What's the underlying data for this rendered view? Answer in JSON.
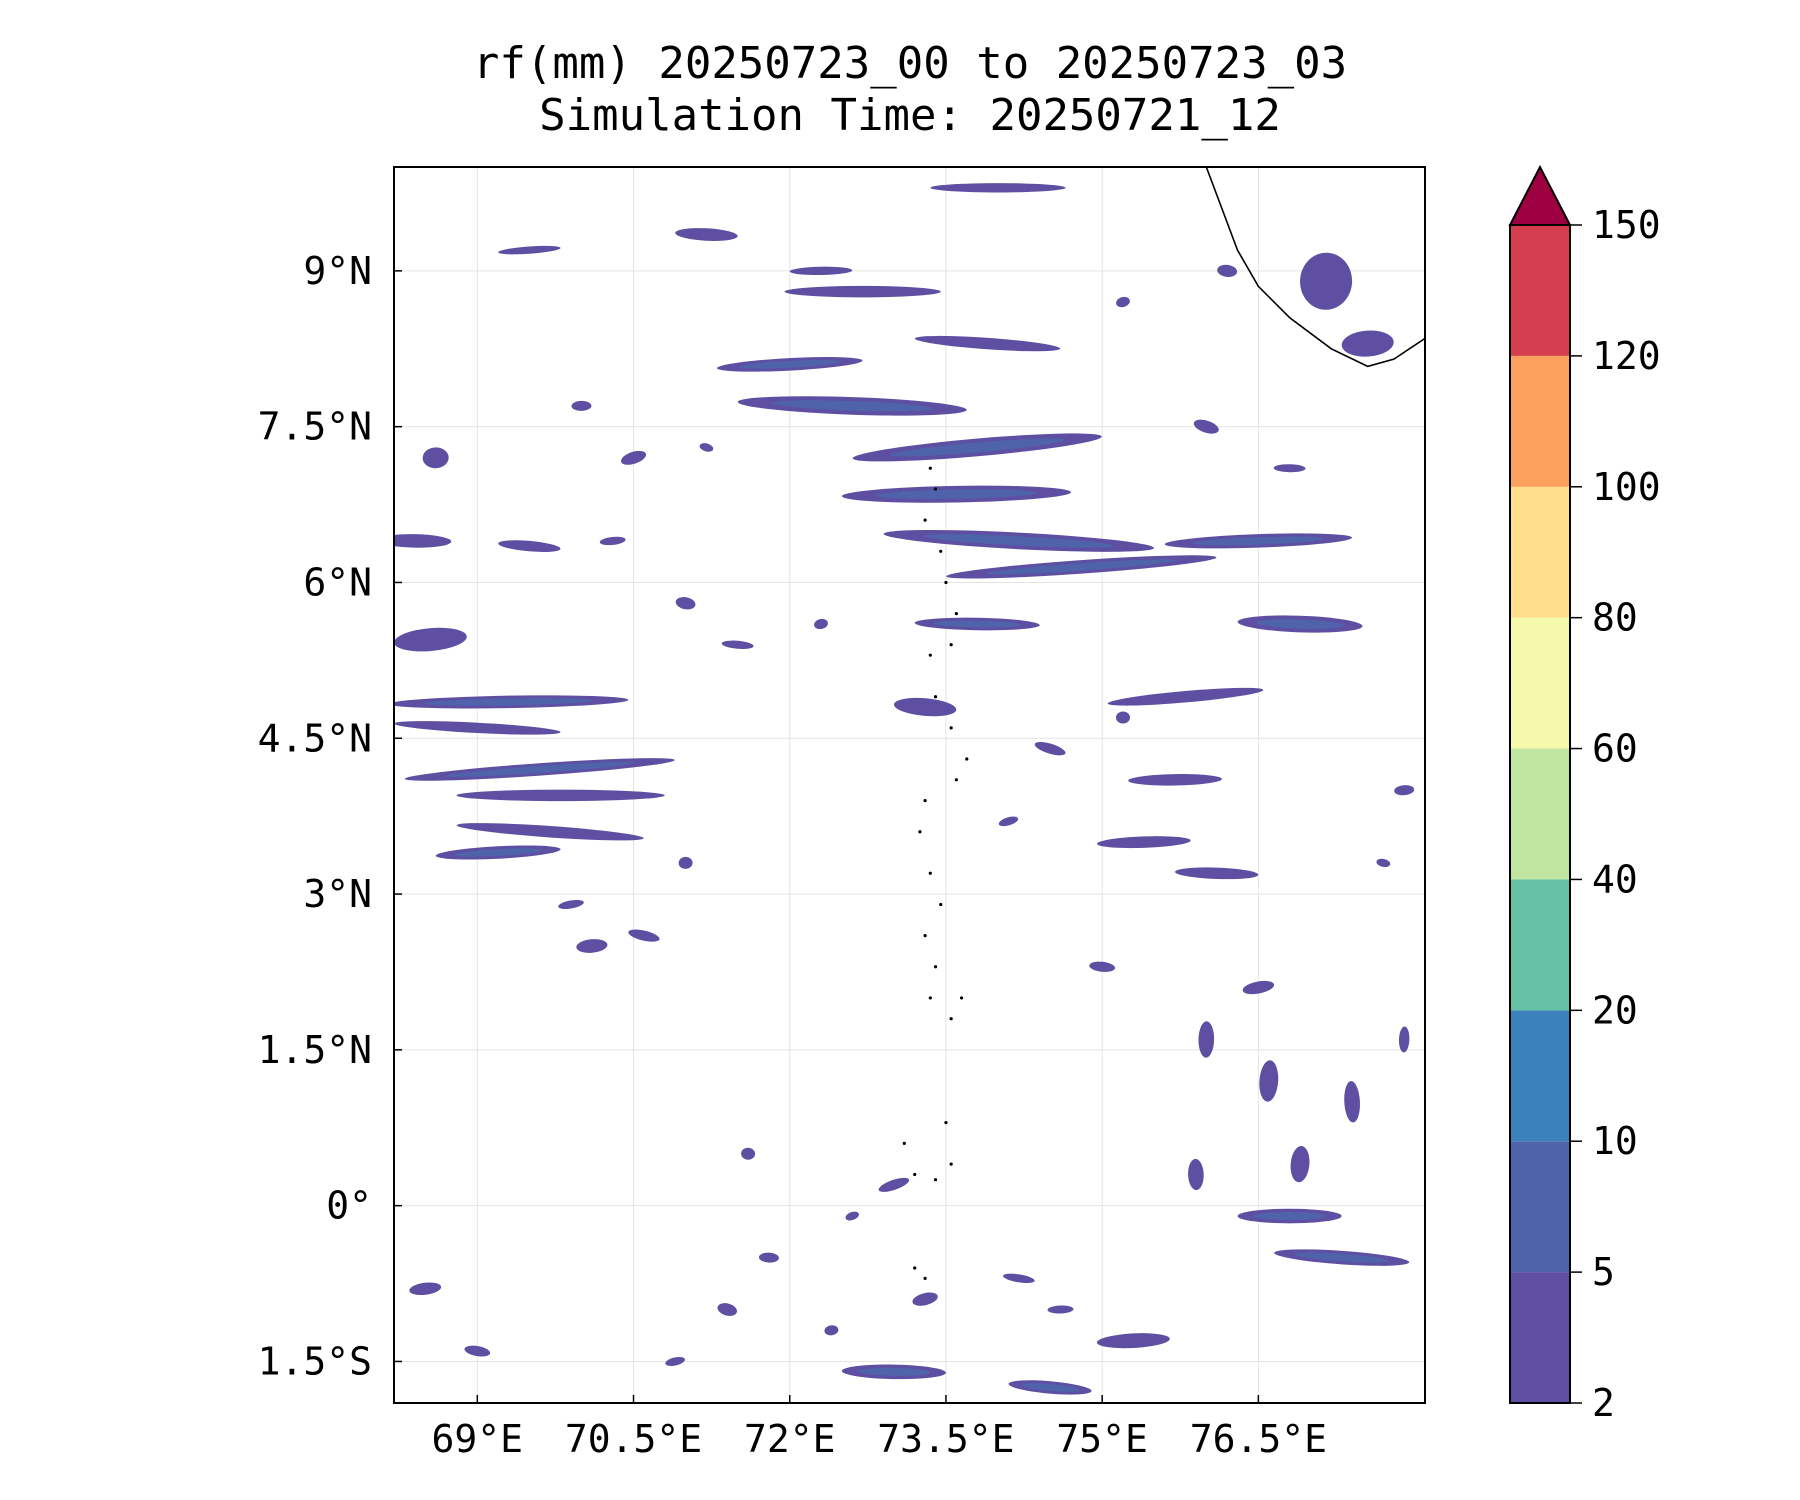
{
  "title": {
    "line1": "rf(mm) 20250723_00 to 20250723_03",
    "line2": "Simulation Time: 20250721_12"
  },
  "map": {
    "lon_range": [
      68.2,
      78.1
    ],
    "lat_range": [
      -1.9,
      10.0
    ],
    "x_ticks": [
      {
        "value": 69.0,
        "label": "69°E"
      },
      {
        "value": 70.5,
        "label": "70.5°E"
      },
      {
        "value": 72.0,
        "label": "72°E"
      },
      {
        "value": 73.5,
        "label": "73.5°E"
      },
      {
        "value": 75.0,
        "label": "75°E"
      },
      {
        "value": 76.5,
        "label": "76.5°E"
      }
    ],
    "y_ticks": [
      {
        "value": 9.0,
        "label": "9°N"
      },
      {
        "value": 7.5,
        "label": "7.5°N"
      },
      {
        "value": 6.0,
        "label": "6°N"
      },
      {
        "value": 4.5,
        "label": "4.5°N"
      },
      {
        "value": 3.0,
        "label": "3°N"
      },
      {
        "value": 1.5,
        "label": "1.5°N"
      },
      {
        "value": 0.0,
        "label": "0°"
      },
      {
        "value": -1.5,
        "label": "1.5°S"
      }
    ],
    "grid": true,
    "fill_colors": {
      "2-5": "#5e4fa2",
      "5-10": "#4f63ab",
      "10-20": "#3b82bd"
    },
    "blobs": [
      {
        "lon": 68.55,
        "lat": 5.45,
        "w": 0.7,
        "h": 0.22
      },
      {
        "lon": 69.3,
        "lat": 4.85,
        "w": 2.3,
        "h": 0.12
      },
      {
        "lon": 69.0,
        "lat": 4.6,
        "w": 1.6,
        "h": 0.1
      },
      {
        "lon": 69.6,
        "lat": 4.2,
        "w": 2.6,
        "h": 0.12
      },
      {
        "lon": 69.8,
        "lat": 3.95,
        "w": 2.0,
        "h": 0.11
      },
      {
        "lon": 69.7,
        "lat": 3.6,
        "w": 1.8,
        "h": 0.11
      },
      {
        "lon": 69.2,
        "lat": 3.4,
        "w": 1.2,
        "h": 0.12
      },
      {
        "lon": 68.4,
        "lat": 6.4,
        "w": 0.7,
        "h": 0.13
      },
      {
        "lon": 69.5,
        "lat": 6.35,
        "w": 0.6,
        "h": 0.1
      },
      {
        "lon": 68.6,
        "lat": 7.2,
        "w": 0.25,
        "h": 0.2
      },
      {
        "lon": 72.6,
        "lat": 7.7,
        "w": 2.2,
        "h": 0.17
      },
      {
        "lon": 73.8,
        "lat": 7.3,
        "w": 2.4,
        "h": 0.17
      },
      {
        "lon": 73.6,
        "lat": 6.85,
        "w": 2.2,
        "h": 0.16
      },
      {
        "lon": 74.2,
        "lat": 6.4,
        "w": 2.6,
        "h": 0.16
      },
      {
        "lon": 74.8,
        "lat": 6.15,
        "w": 2.6,
        "h": 0.13
      },
      {
        "lon": 72.7,
        "lat": 8.8,
        "w": 1.5,
        "h": 0.11
      },
      {
        "lon": 73.9,
        "lat": 8.3,
        "w": 1.4,
        "h": 0.11
      },
      {
        "lon": 72.0,
        "lat": 8.1,
        "w": 1.4,
        "h": 0.12
      },
      {
        "lon": 73.8,
        "lat": 5.6,
        "w": 1.2,
        "h": 0.12
      },
      {
        "lon": 73.3,
        "lat": 4.8,
        "w": 0.6,
        "h": 0.17
      },
      {
        "lon": 76.5,
        "lat": 6.4,
        "w": 1.8,
        "h": 0.13
      },
      {
        "lon": 76.9,
        "lat": 5.6,
        "w": 1.2,
        "h": 0.16
      },
      {
        "lon": 75.8,
        "lat": 4.9,
        "w": 1.5,
        "h": 0.11
      },
      {
        "lon": 75.7,
        "lat": 4.1,
        "w": 0.9,
        "h": 0.11
      },
      {
        "lon": 77.15,
        "lat": 8.9,
        "w": 0.5,
        "h": 0.55
      },
      {
        "lon": 77.55,
        "lat": 8.3,
        "w": 0.5,
        "h": 0.25
      },
      {
        "lon": 76.8,
        "lat": -0.1,
        "w": 1.0,
        "h": 0.14
      },
      {
        "lon": 77.3,
        "lat": -0.5,
        "w": 1.3,
        "h": 0.13
      },
      {
        "lon": 75.3,
        "lat": -1.3,
        "w": 0.7,
        "h": 0.14
      },
      {
        "lon": 73.0,
        "lat": -1.6,
        "w": 1.0,
        "h": 0.14
      },
      {
        "lon": 74.5,
        "lat": -1.75,
        "w": 0.8,
        "h": 0.12
      },
      {
        "lon": 75.4,
        "lat": 3.5,
        "w": 0.9,
        "h": 0.11
      },
      {
        "lon": 76.1,
        "lat": 3.2,
        "w": 0.8,
        "h": 0.11
      },
      {
        "lon": 70.1,
        "lat": 2.5,
        "w": 0.3,
        "h": 0.13
      },
      {
        "lon": 72.3,
        "lat": 9.0,
        "w": 0.6,
        "h": 0.08
      },
      {
        "lon": 71.2,
        "lat": 9.35,
        "w": 0.6,
        "h": 0.12
      },
      {
        "lon": 69.5,
        "lat": 9.2,
        "w": 0.6,
        "h": 0.07
      },
      {
        "lon": 74.0,
        "lat": 9.8,
        "w": 1.3,
        "h": 0.09
      },
      {
        "lon": 76.6,
        "lat": 1.2,
        "w": 0.18,
        "h": 0.4
      },
      {
        "lon": 77.4,
        "lat": 1.0,
        "w": 0.15,
        "h": 0.4
      },
      {
        "lon": 76.0,
        "lat": 1.6,
        "w": 0.15,
        "h": 0.35
      },
      {
        "lon": 76.9,
        "lat": 0.4,
        "w": 0.18,
        "h": 0.35
      },
      {
        "lon": 75.9,
        "lat": 0.3,
        "w": 0.15,
        "h": 0.3
      },
      {
        "lon": 77.9,
        "lat": 1.6,
        "w": 0.1,
        "h": 0.25
      }
    ],
    "specks": [
      {
        "lon": 72.6,
        "lat": -0.1
      },
      {
        "lon": 71.8,
        "lat": -0.5
      },
      {
        "lon": 73.3,
        "lat": -0.9
      },
      {
        "lon": 74.2,
        "lat": -0.7
      },
      {
        "lon": 72.4,
        "lat": -1.2
      },
      {
        "lon": 71.4,
        "lat": -1.0
      },
      {
        "lon": 74.6,
        "lat": -1.0
      },
      {
        "lon": 73.0,
        "lat": 0.2
      },
      {
        "lon": 71.6,
        "lat": 0.5
      },
      {
        "lon": 70.9,
        "lat": -1.5
      },
      {
        "lon": 69.0,
        "lat": -1.4
      },
      {
        "lon": 68.5,
        "lat": -0.8
      },
      {
        "lon": 71.2,
        "lat": 7.3
      },
      {
        "lon": 70.0,
        "lat": 7.7
      },
      {
        "lon": 70.5,
        "lat": 7.2
      },
      {
        "lon": 71.5,
        "lat": 5.4
      },
      {
        "lon": 72.3,
        "lat": 5.6
      },
      {
        "lon": 71.0,
        "lat": 5.8
      },
      {
        "lon": 70.3,
        "lat": 6.4
      },
      {
        "lon": 74.5,
        "lat": 4.4
      },
      {
        "lon": 75.2,
        "lat": 4.7
      },
      {
        "lon": 74.1,
        "lat": 3.7
      },
      {
        "lon": 75.0,
        "lat": 2.3
      },
      {
        "lon": 76.5,
        "lat": 2.1
      },
      {
        "lon": 77.7,
        "lat": 3.3
      },
      {
        "lon": 77.9,
        "lat": 4.0
      },
      {
        "lon": 76.0,
        "lat": 7.5
      },
      {
        "lon": 76.8,
        "lat": 7.1
      },
      {
        "lon": 75.2,
        "lat": 8.7
      },
      {
        "lon": 76.2,
        "lat": 9.0
      },
      {
        "lon": 69.9,
        "lat": 2.9
      },
      {
        "lon": 70.6,
        "lat": 2.6
      },
      {
        "lon": 71.0,
        "lat": 3.3
      }
    ],
    "coast": {
      "india": [
        [
          76.0,
          10.0
        ],
        [
          76.15,
          9.6
        ],
        [
          76.3,
          9.2
        ],
        [
          76.5,
          8.85
        ],
        [
          76.8,
          8.55
        ],
        [
          77.2,
          8.25
        ],
        [
          77.55,
          8.08
        ],
        [
          77.8,
          8.15
        ],
        [
          78.1,
          8.35
        ]
      ],
      "maldives_dots": [
        [
          73.35,
          7.1
        ],
        [
          73.4,
          6.9
        ],
        [
          73.3,
          6.6
        ],
        [
          73.45,
          6.3
        ],
        [
          73.5,
          6.0
        ],
        [
          73.6,
          5.7
        ],
        [
          73.55,
          5.4
        ],
        [
          73.35,
          5.3
        ],
        [
          73.4,
          4.9
        ],
        [
          73.55,
          4.6
        ],
        [
          73.7,
          4.3
        ],
        [
          73.6,
          4.1
        ],
        [
          73.3,
          3.9
        ],
        [
          73.25,
          3.6
        ],
        [
          73.35,
          3.2
        ],
        [
          73.45,
          2.9
        ],
        [
          73.3,
          2.6
        ],
        [
          73.4,
          2.3
        ],
        [
          73.35,
          2.0
        ],
        [
          73.55,
          1.8
        ],
        [
          73.65,
          2.0
        ],
        [
          73.1,
          0.6
        ],
        [
          73.2,
          0.3
        ],
        [
          73.4,
          0.25
        ],
        [
          73.55,
          0.4
        ],
        [
          73.5,
          0.8
        ],
        [
          73.2,
          -0.6
        ],
        [
          73.3,
          -0.7
        ]
      ]
    }
  },
  "colorbar": {
    "levels": [
      "2",
      "5",
      "10",
      "20",
      "40",
      "60",
      "80",
      "100",
      "120",
      "150"
    ],
    "colors": [
      "#5e4fa2",
      "#4f63ab",
      "#3b82bd",
      "#66c2a5",
      "#bfe5a0",
      "#f4f9ab",
      "#fddf8b",
      "#fba15d",
      "#d53e4f"
    ],
    "extend_color": "#9e0142"
  }
}
